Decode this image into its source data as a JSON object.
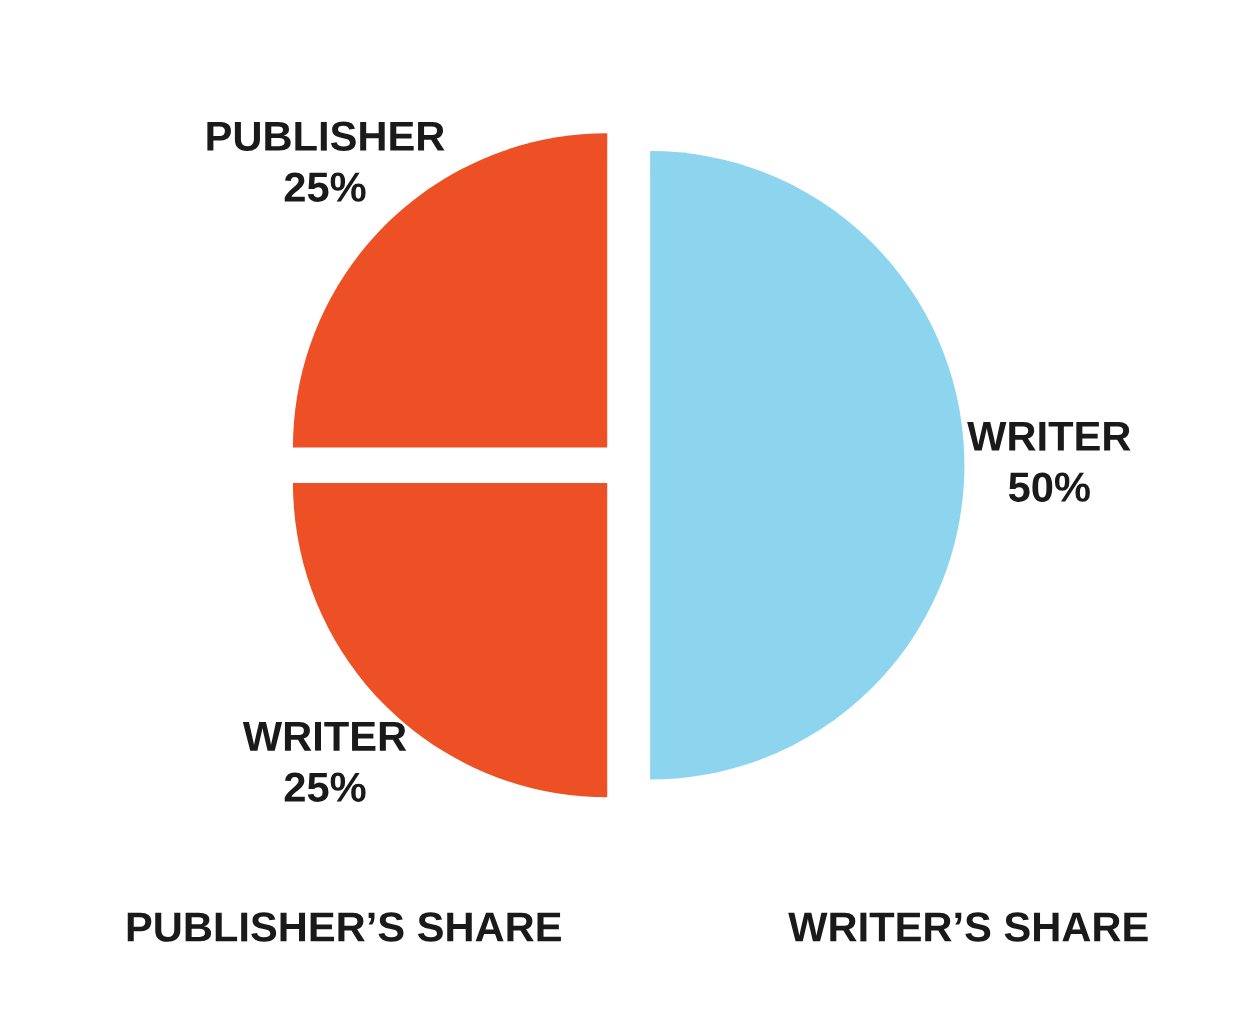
{
  "chart_data": {
    "type": "pie",
    "categories": [
      "WRITER",
      "WRITER",
      "PUBLISHER"
    ],
    "values": [
      50,
      25,
      25
    ],
    "colors": [
      "#8dd4ef",
      "#ec5024",
      "#ec5024"
    ],
    "value_labels": [
      "50%",
      "25%",
      "25%"
    ],
    "annotations": [
      "PUBLISHER’S SHARE",
      "WRITER’S SHARE"
    ]
  }
}
